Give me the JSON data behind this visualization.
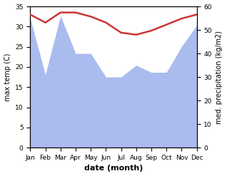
{
  "months": [
    "Jan",
    "Feb",
    "Mar",
    "Apr",
    "May",
    "Jun",
    "Jul",
    "Aug",
    "Sep",
    "Oct",
    "Nov",
    "Dec"
  ],
  "temperature": [
    33.0,
    31.0,
    33.5,
    33.5,
    32.5,
    31.0,
    28.5,
    28.0,
    29.0,
    30.5,
    32.0,
    33.0
  ],
  "precipitation": [
    55,
    31,
    56,
    40,
    40,
    30,
    30,
    35,
    32,
    32,
    43,
    52
  ],
  "temp_color": "#cc3333",
  "precip_color": "#aabbee",
  "xlabel": "date (month)",
  "ylabel_left": "max temp (C)",
  "ylabel_right": "med. precipitation (kg/m2)",
  "ylim_left": [
    0,
    35
  ],
  "ylim_right": [
    0,
    60
  ],
  "yticks_left": [
    0,
    5,
    10,
    15,
    20,
    25,
    30,
    35
  ],
  "yticks_right": [
    0,
    10,
    20,
    30,
    40,
    50,
    60
  ],
  "background_color": "#ffffff",
  "temp_linewidth": 1.8
}
